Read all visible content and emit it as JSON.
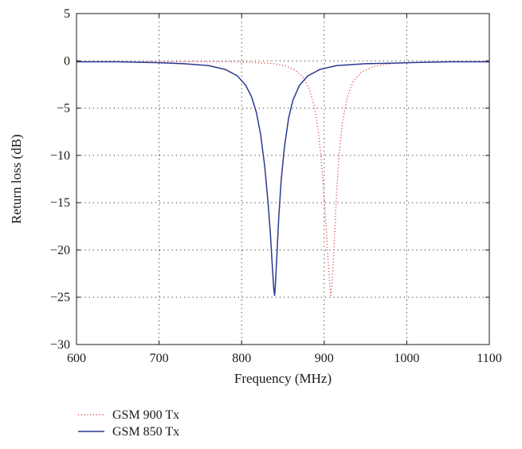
{
  "chart_data": {
    "type": "line",
    "title": "",
    "xlabel": "Frequency (MHz)",
    "ylabel": "Return loss (dB)",
    "xlim": [
      600,
      1100
    ],
    "ylim": [
      -30,
      5
    ],
    "xticks": [
      600,
      700,
      800,
      900,
      1000,
      1100
    ],
    "yticks": [
      5,
      0,
      -5,
      -10,
      -15,
      -20,
      -25,
      -30
    ],
    "xtick_labels": [
      "600",
      "700",
      "800",
      "900",
      "1000",
      "1100"
    ],
    "ytick_labels": [
      "5",
      "0",
      "−5",
      "−10",
      "−15",
      "−20",
      "−25",
      "−30"
    ],
    "grid": true,
    "legend_position": "bottom-left, below plot",
    "series": [
      {
        "name": "GSM 900 Tx",
        "color": "#e05050",
        "style": "dotted",
        "x": [
          600,
          650,
          700,
          750,
          780,
          800,
          820,
          840,
          855,
          865,
          875,
          882,
          888,
          893,
          897,
          900,
          903,
          905,
          907,
          908,
          910,
          912,
          915,
          918,
          922,
          928,
          935,
          945,
          960,
          980,
          1000,
          1050,
          1100
        ],
        "y": [
          -0.1,
          -0.1,
          -0.1,
          -0.1,
          -0.1,
          -0.1,
          -0.2,
          -0.3,
          -0.6,
          -1.0,
          -1.8,
          -3.0,
          -4.8,
          -7.5,
          -11.0,
          -14.5,
          -18.5,
          -21.5,
          -24.0,
          -24.8,
          -23.0,
          -19.5,
          -14.0,
          -10.0,
          -6.5,
          -3.8,
          -2.2,
          -1.2,
          -0.6,
          -0.3,
          -0.2,
          -0.1,
          -0.1
        ]
      },
      {
        "name": "GSM 850 Tx",
        "color": "#2b3990",
        "style": "solid",
        "x": [
          600,
          650,
          700,
          730,
          760,
          780,
          795,
          805,
          812,
          818,
          823,
          828,
          832,
          835,
          837,
          839,
          840,
          841,
          843,
          845,
          848,
          852,
          857,
          862,
          870,
          880,
          895,
          915,
          950,
          1000,
          1050,
          1100
        ],
        "y": [
          -0.1,
          -0.1,
          -0.2,
          -0.3,
          -0.5,
          -0.9,
          -1.6,
          -2.6,
          -3.8,
          -5.5,
          -7.8,
          -11.2,
          -15.0,
          -18.5,
          -21.5,
          -24.2,
          -24.8,
          -23.5,
          -20.0,
          -16.5,
          -12.5,
          -9.0,
          -6.0,
          -4.2,
          -2.6,
          -1.6,
          -0.9,
          -0.5,
          -0.3,
          -0.2,
          -0.1,
          -0.1
        ]
      }
    ]
  }
}
